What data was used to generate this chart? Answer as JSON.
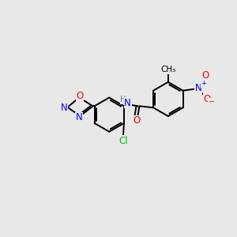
{
  "bg": "#e8e8e8",
  "C": "#000000",
  "N": "#0000ff",
  "O": "#ff0000",
  "Cl": "#00bb00",
  "H": "#4a8a8a",
  "lw": 1.4,
  "fs": 8.5
}
